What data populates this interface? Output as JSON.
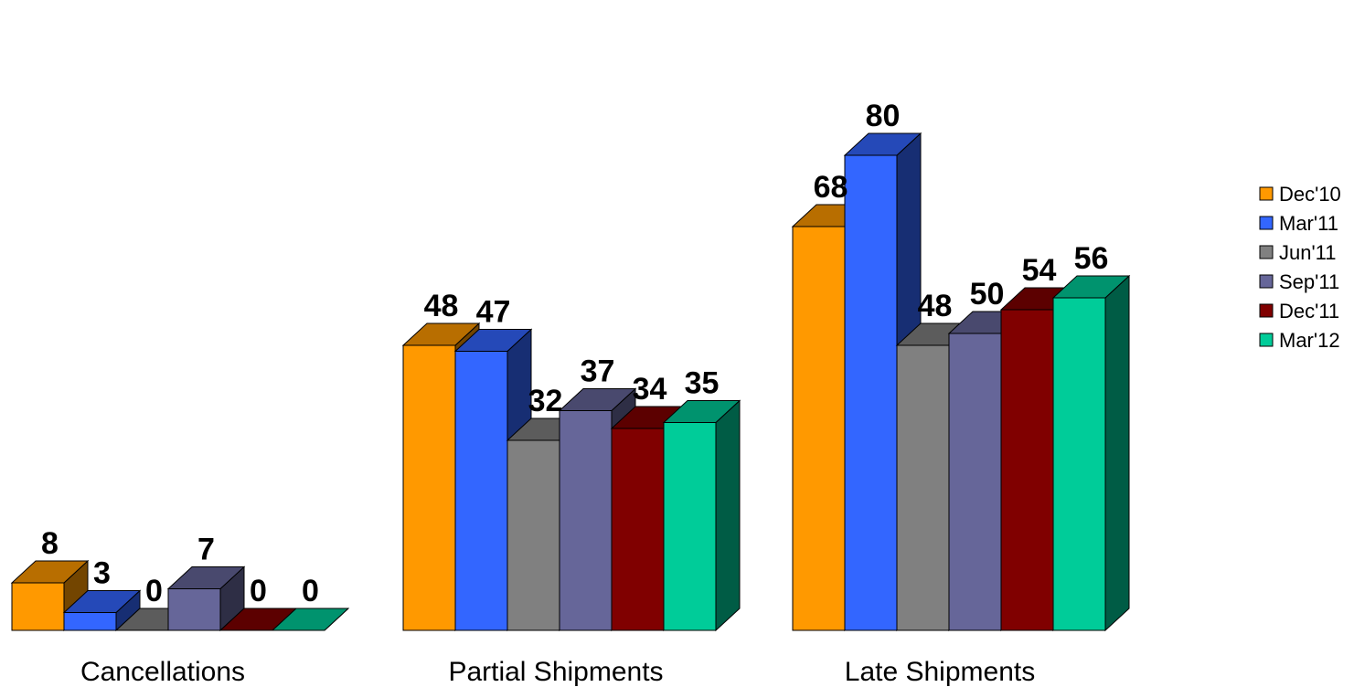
{
  "chart_data": {
    "type": "bar",
    "style": "3d-clustered-column",
    "categories": [
      "Cancellations",
      "Partial Shipments",
      "Late Shipments"
    ],
    "series": [
      {
        "name": "Dec'10",
        "color": "#FF9900",
        "values": [
          8,
          48,
          68
        ]
      },
      {
        "name": "Mar'11",
        "color": "#3366FF",
        "values": [
          3,
          47,
          80
        ]
      },
      {
        "name": "Jun'11",
        "color": "#808080",
        "values": [
          0,
          32,
          48
        ]
      },
      {
        "name": "Sep'11",
        "color": "#666699",
        "values": [
          7,
          37,
          50
        ]
      },
      {
        "name": "Dec'11",
        "color": "#800000",
        "values": [
          0,
          34,
          54
        ]
      },
      {
        "name": "Mar'12",
        "color": "#00CC99",
        "values": [
          0,
          35,
          56
        ]
      }
    ],
    "title": "",
    "xlabel": "",
    "ylabel": "",
    "data_labels": true,
    "grid": false,
    "legend_position": "right"
  }
}
